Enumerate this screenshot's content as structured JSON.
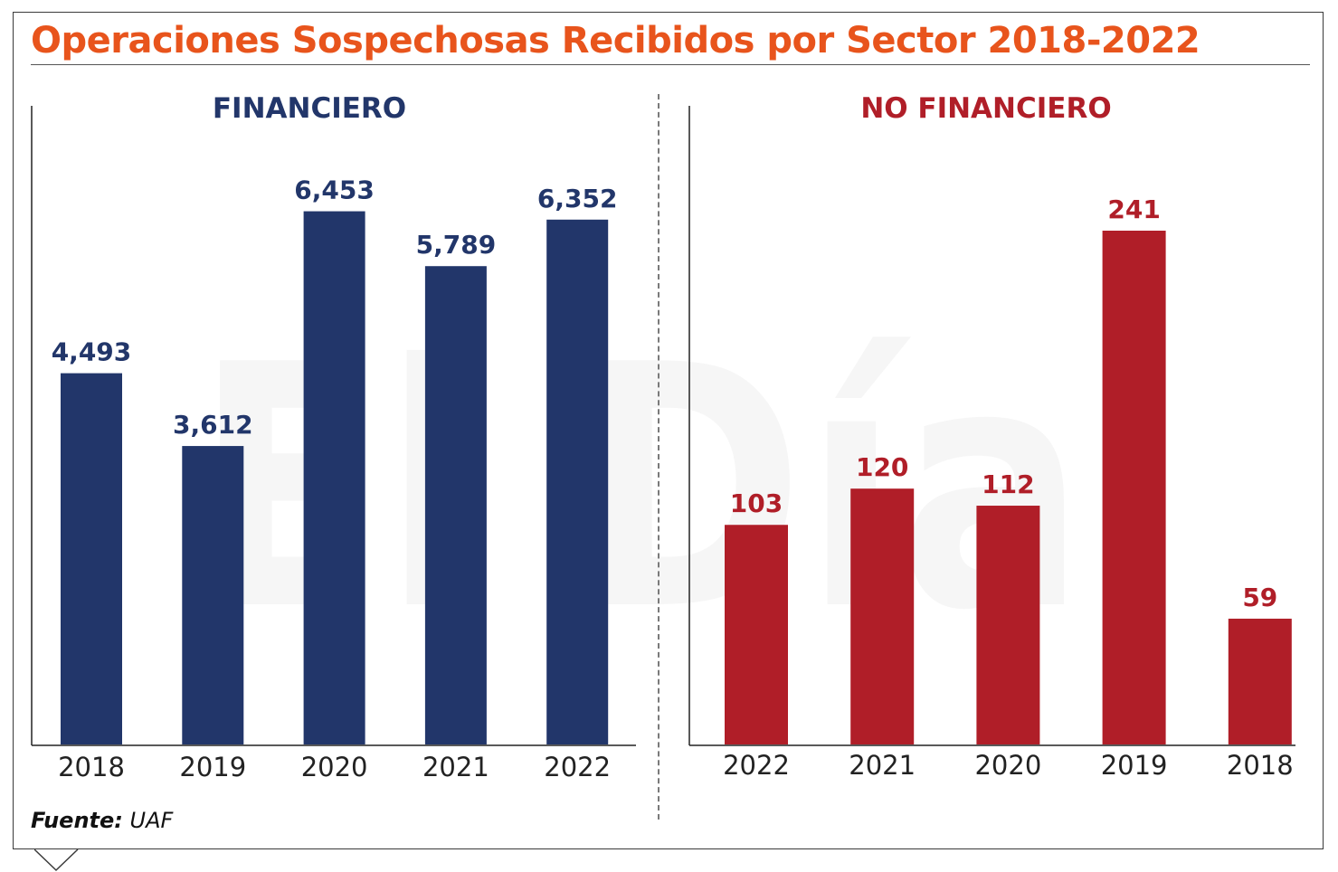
{
  "page_title": "Operaciones Sospechosas Recibidos por Sector 2018-2022",
  "source": {
    "label": "Fuente:",
    "value": "UAF"
  },
  "watermark": "El Día",
  "colors": {
    "title": "#e8541c",
    "financiero": "#22366a",
    "no_financiero": "#b01e28"
  },
  "chart_data": [
    {
      "type": "bar",
      "title": "FINANCIERO",
      "categories": [
        "2018",
        "2019",
        "2020",
        "2021",
        "2022"
      ],
      "values": [
        4493,
        3612,
        6453,
        5789,
        6352
      ],
      "value_labels": [
        "4,493",
        "3,612",
        "6,453",
        "5,789",
        "6,352"
      ],
      "ylim": [
        0,
        6700
      ],
      "grid": false,
      "color": "#22366a"
    },
    {
      "type": "bar",
      "title": "NO FINANCIERO",
      "categories": [
        "2022",
        "2021",
        "2020",
        "2019",
        "2018"
      ],
      "values": [
        103,
        120,
        112,
        241,
        59
      ],
      "value_labels": [
        "103",
        "120",
        "112",
        "241",
        "59"
      ],
      "ylim": [
        0,
        241
      ],
      "grid": false,
      "color": "#b01e28"
    }
  ]
}
